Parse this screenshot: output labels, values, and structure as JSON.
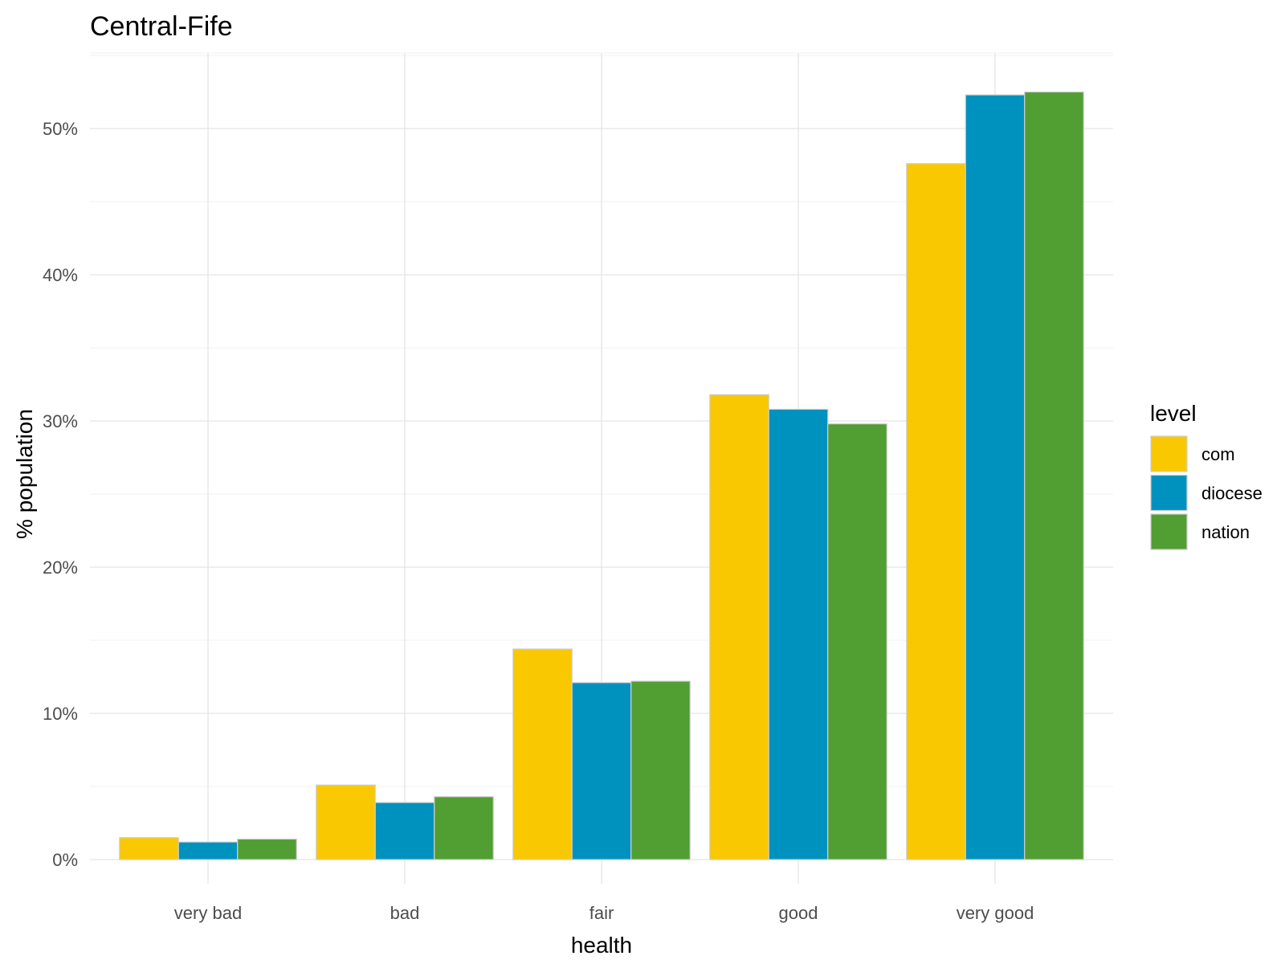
{
  "chart_data": {
    "type": "bar",
    "title": "Central-Fife",
    "xlabel": "health",
    "ylabel": "% population",
    "categories": [
      "very bad",
      "bad",
      "fair",
      "good",
      "very good"
    ],
    "series": [
      {
        "name": "com",
        "color": "#F9C800",
        "values": [
          1.5,
          5.1,
          14.4,
          31.8,
          47.6
        ]
      },
      {
        "name": "diocese",
        "color": "#0092BE",
        "values": [
          1.2,
          3.9,
          12.1,
          30.8,
          52.3
        ]
      },
      {
        "name": "nation",
        "color": "#519E32",
        "values": [
          1.4,
          4.3,
          12.2,
          29.8,
          52.5
        ]
      }
    ],
    "ylim": [
      0,
      55
    ],
    "yticks": [
      0,
      10,
      20,
      30,
      40,
      50
    ],
    "ytick_labels": [
      "0%",
      "10%",
      "20%",
      "30%",
      "40%",
      "50%"
    ],
    "grid": true,
    "legend": {
      "title": "level",
      "position": "right"
    }
  }
}
